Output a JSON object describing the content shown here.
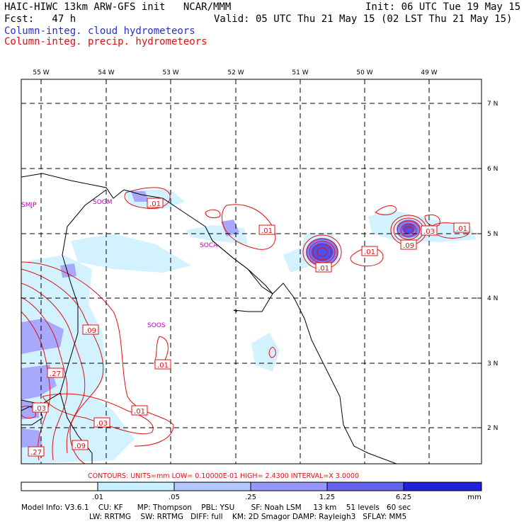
{
  "header": {
    "line1_left": "HAIC-HIWC 13km ARW-GFS init   NCAR/MMM",
    "line1_right": "Init: 06 UTC Tue 19 May 15",
    "line2_left": "Fcst:   47 h",
    "line2_right": "Valid: 05 UTC Thu 21 May 15 (02 LST Thu 21 May 15)",
    "legend_cloud": "Column-integ. cloud hydrometeors",
    "legend_precip": "Column-integ. precip. hydrometeors",
    "color_cloud": "#2b2bd6",
    "color_precip": "#e01010"
  },
  "map": {
    "lon_labels": [
      "55 W",
      "54 W",
      "53 W",
      "52 W",
      "51 W",
      "50 W",
      "49 W"
    ],
    "lat_labels": [
      "7 N",
      "6 N",
      "5 N",
      "4 N",
      "3 N",
      "2 N"
    ],
    "stations": [
      "SMJP",
      "SOGM",
      "SOCA",
      "SOOS"
    ],
    "contour_labels": [
      ".01",
      ".01",
      ".01",
      ".01",
      ".03",
      ".01",
      ".09",
      ".09",
      ".01",
      ".27",
      ".03",
      ".01",
      ".03",
      ".09",
      ".27"
    ]
  },
  "contour_info": "CONTOURS:  UNITS=mm  LOW= 0.10000E-01  HIGH=  2.4300     INTERVAL=X  3.0000",
  "colorbar": {
    "ticks": [
      ".01",
      ".05",
      ".25",
      "1.25",
      "6.25"
    ],
    "unit": "mm",
    "colors": [
      "#ffffff",
      "#c8f0ff",
      "#b4c8ff",
      "#9696ff",
      "#6464f0",
      "#2020e0"
    ]
  },
  "footer": {
    "line1": "Model Info: V3.6.1    CU: KF      MP: Thompson    PBL: YSU       SF: Noah LSM     13 km    51 levels   60 sec",
    "line2": "LW: RRTMG    SW: RRTMG   DIFF: full    KM: 2D Smagor DAMP: Rayleigh3   SFLAY: MM5"
  }
}
